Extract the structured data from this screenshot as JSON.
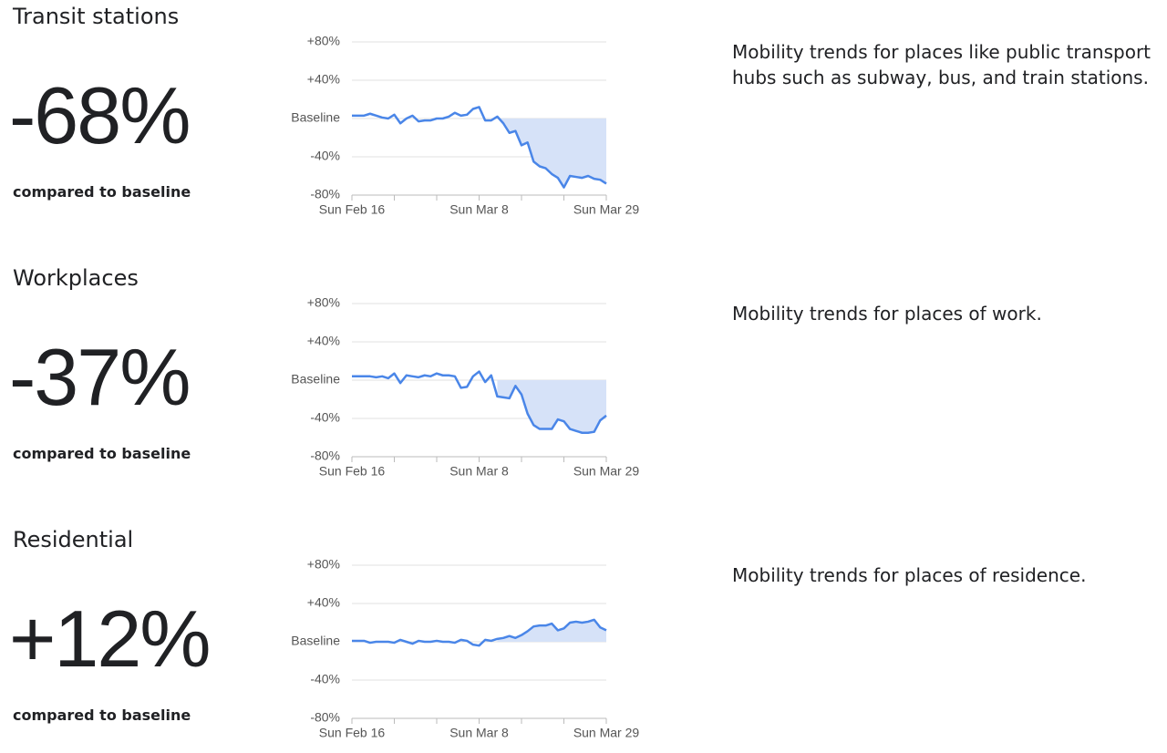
{
  "chart_data": [
    {
      "type": "line",
      "title": "Transit stations",
      "headline": "-68%",
      "subtitle": "compared to baseline",
      "description": "Mobility trends for places like public transport hubs such as subway, bus, and train stations.",
      "categories": [
        "Sun Feb 16",
        null,
        null,
        null,
        null,
        null,
        null,
        null,
        null,
        null,
        null,
        null,
        null,
        null,
        null,
        null,
        null,
        null,
        null,
        null,
        null,
        "Sun Mar 8",
        null,
        null,
        null,
        null,
        null,
        null,
        null,
        null,
        null,
        null,
        null,
        null,
        null,
        null,
        null,
        null,
        null,
        null,
        null,
        null,
        "Sun Mar 29"
      ],
      "series": [
        {
          "color": "#4a86e8",
          "values": [
            3,
            3,
            3,
            5,
            3,
            1,
            0,
            4,
            -5,
            0,
            3,
            -3,
            -2,
            -2,
            0,
            0,
            2,
            6,
            3,
            4,
            10,
            12,
            -2,
            -2,
            2,
            -5,
            -15,
            -13,
            -28,
            -25,
            -45,
            -50,
            -52,
            -58,
            -62,
            -72,
            -60,
            -61,
            -62,
            -60,
            -63,
            -64,
            -68
          ]
        }
      ],
      "area_color": "#d6e2f8",
      "ylim": [
        -80,
        80
      ],
      "yticks": [
        {
          "value": 80,
          "label": "+80%"
        },
        {
          "value": 40,
          "label": "+40%"
        },
        {
          "value": 0,
          "label": "Baseline"
        },
        {
          "value": -40,
          "label": "-40%"
        },
        {
          "value": -80,
          "label": "-80%"
        }
      ],
      "grid": true
    },
    {
      "type": "line",
      "title": "Workplaces",
      "headline": "-37%",
      "subtitle": "compared to baseline",
      "description": "Mobility trends for places of work.",
      "categories": [
        "Sun Feb 16",
        null,
        null,
        null,
        null,
        null,
        null,
        null,
        null,
        null,
        null,
        null,
        null,
        null,
        null,
        null,
        null,
        null,
        null,
        null,
        null,
        "Sun Mar 8",
        null,
        null,
        null,
        null,
        null,
        null,
        null,
        null,
        null,
        null,
        null,
        null,
        null,
        null,
        null,
        null,
        null,
        null,
        null,
        null,
        "Sun Mar 29"
      ],
      "series": [
        {
          "color": "#4a86e8",
          "values": [
            4,
            4,
            4,
            4,
            3,
            4,
            2,
            7,
            -3,
            5,
            4,
            3,
            5,
            4,
            7,
            5,
            5,
            4,
            -8,
            -7,
            4,
            9,
            -2,
            5,
            -17,
            -18,
            -19,
            -6,
            -15,
            -35,
            -47,
            -51,
            -51,
            -51,
            -41,
            -43,
            -51,
            -53,
            -55,
            -55,
            -54,
            -42,
            -37
          ]
        }
      ],
      "area_color": "#d6e2f8",
      "ylim": [
        -80,
        80
      ],
      "yticks": [
        {
          "value": 80,
          "label": "+80%"
        },
        {
          "value": 40,
          "label": "+40%"
        },
        {
          "value": 0,
          "label": "Baseline"
        },
        {
          "value": -40,
          "label": "-40%"
        },
        {
          "value": -80,
          "label": "-80%"
        }
      ],
      "grid": true
    },
    {
      "type": "line",
      "title": "Residential",
      "headline": "+12%",
      "subtitle": "compared to baseline",
      "description": "Mobility trends for places of residence.",
      "categories": [
        "Sun Feb 16",
        null,
        null,
        null,
        null,
        null,
        null,
        null,
        null,
        null,
        null,
        null,
        null,
        null,
        null,
        null,
        null,
        null,
        null,
        null,
        null,
        "Sun Mar 8",
        null,
        null,
        null,
        null,
        null,
        null,
        null,
        null,
        null,
        null,
        null,
        null,
        null,
        null,
        null,
        null,
        null,
        null,
        null,
        null,
        "Sun Mar 29"
      ],
      "series": [
        {
          "color": "#4a86e8",
          "values": [
            1,
            1,
            1,
            -1,
            0,
            0,
            0,
            -1,
            2,
            0,
            -2,
            1,
            0,
            0,
            1,
            0,
            0,
            -1,
            2,
            1,
            -3,
            -4,
            2,
            1,
            3,
            4,
            6,
            4,
            7,
            11,
            16,
            17,
            17,
            19,
            12,
            14,
            20,
            21,
            20,
            21,
            23,
            15,
            12
          ]
        }
      ],
      "area_color": "#d6e2f8",
      "ylim": [
        -80,
        80
      ],
      "yticks": [
        {
          "value": 80,
          "label": "+80%"
        },
        {
          "value": 40,
          "label": "+40%"
        },
        {
          "value": 0,
          "label": "Baseline"
        },
        {
          "value": -40,
          "label": "-40%"
        },
        {
          "value": -80,
          "label": "-80%"
        }
      ],
      "grid": true
    }
  ]
}
